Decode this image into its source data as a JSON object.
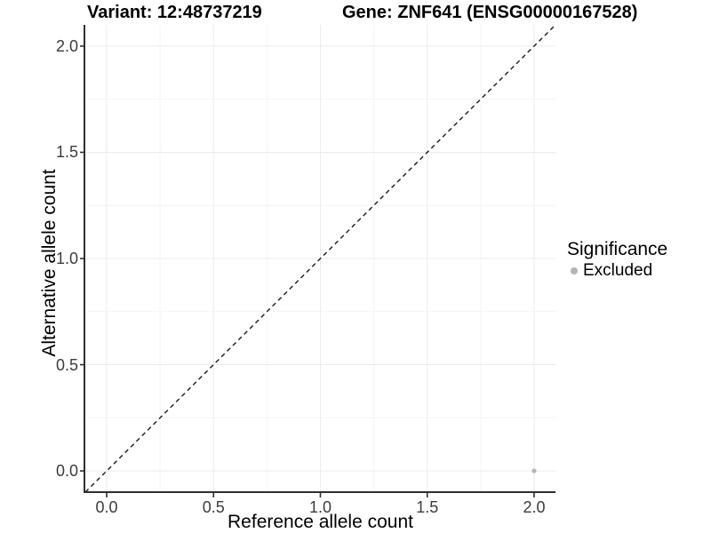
{
  "chart_data": {
    "type": "scatter",
    "title_left": "Variant: 12:48737219",
    "title_right": "Gene: ZNF641 (ENSG00000167528)",
    "xlabel": "Reference allele count",
    "ylabel": "Alternative allele count",
    "xlim": [
      -0.1,
      2.1
    ],
    "ylim": [
      -0.1,
      2.1
    ],
    "x_ticks": {
      "values": [
        0,
        0.5,
        1,
        1.5,
        2
      ],
      "labels": [
        "0.0",
        "0.5",
        "1.0",
        "1.5",
        "2.0"
      ]
    },
    "y_ticks": {
      "values": [
        0,
        0.5,
        1,
        1.5,
        2
      ],
      "labels": [
        "0.0",
        "0.5",
        "1.0",
        "1.5",
        "2.0"
      ]
    },
    "x_minor_ticks": [
      0.25,
      0.75,
      1.25,
      1.75
    ],
    "y_minor_ticks": [
      0.25,
      0.75,
      1.25,
      1.75
    ],
    "grid": {
      "major": true,
      "minor": true
    },
    "points": [
      {
        "x": 2.0,
        "y": 0.0,
        "series": "Excluded",
        "color": "#b5b5b5"
      }
    ],
    "identity_line": {
      "slope": 1,
      "intercept": 0,
      "linetype": "dashed",
      "color": "#1a1a1a"
    },
    "legend": {
      "title": "Significance",
      "position": "right",
      "entries": [
        {
          "label": "Excluded",
          "color": "#b5b5b5",
          "marker": "circle"
        }
      ]
    },
    "colors": {
      "background": "#ffffff",
      "grid_major": "#ebebeb",
      "grid_minor": "#f4f4f4",
      "axis_line": "#2f2f2f",
      "tick": "#2f2f2f",
      "tick_label": "#3c3c3c",
      "point": "#b5b5b5",
      "identity_line": "#1a1a1a"
    }
  }
}
